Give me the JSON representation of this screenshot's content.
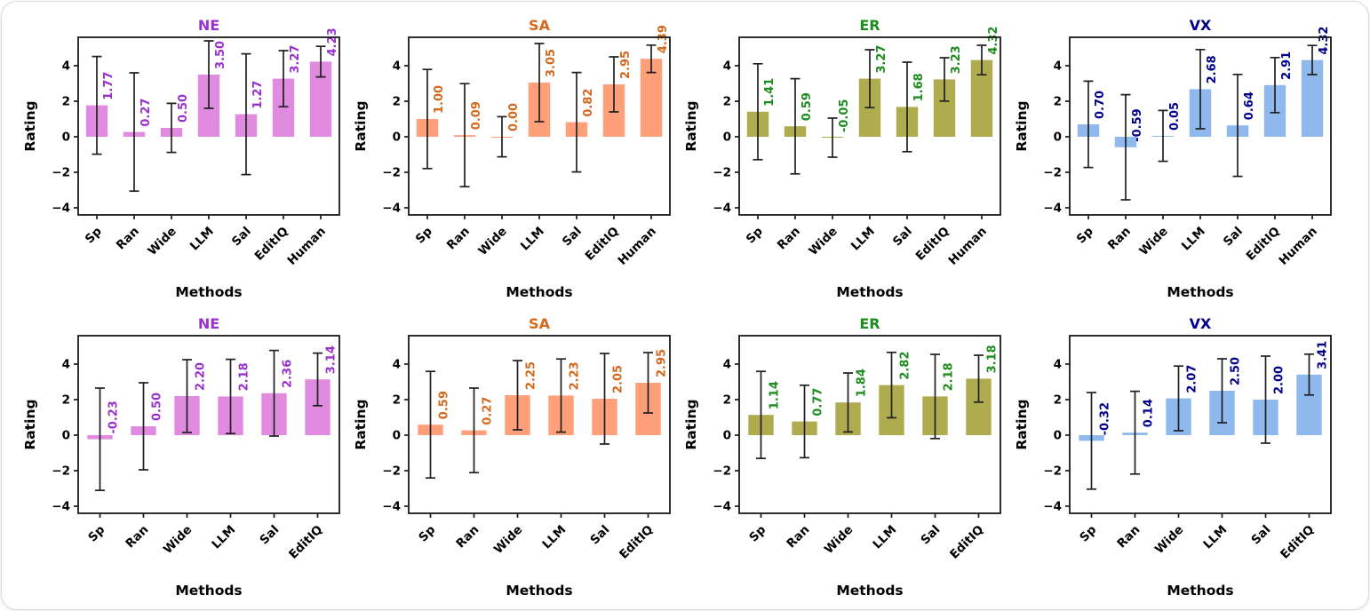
{
  "figure": {
    "ylabel": "Rating",
    "xlabel": "Methods",
    "yticks": [
      -4,
      -2,
      0,
      2,
      4
    ],
    "ylim": [
      -4.4,
      5.6
    ],
    "value_label_offset": 0.3,
    "axis_color": "#1a1a1a",
    "errorbar_color": "#1f1f1f",
    "tick_text_color": "#000000",
    "background_color": "#ffffff"
  },
  "chart_data": [
    {
      "id": "ne-top",
      "type": "bar",
      "title": "NE",
      "title_color": "#9932CC",
      "bar_color": "#E08BE0",
      "label_color": "#9932CC",
      "xlabel": "Methods",
      "ylabel": "Rating",
      "ylim": [
        -4.4,
        5.6
      ],
      "yticks": [
        -4,
        -2,
        0,
        2,
        4
      ],
      "categories": [
        "Sp",
        "Ran",
        "Wide",
        "LLM",
        "Sal",
        "EditIQ",
        "Human"
      ],
      "values": [
        1.77,
        0.27,
        0.5,
        3.5,
        1.27,
        3.27,
        4.23
      ],
      "errors": [
        2.75,
        3.33,
        1.38,
        1.9,
        3.4,
        1.58,
        0.86
      ]
    },
    {
      "id": "sa-top",
      "type": "bar",
      "title": "SA",
      "title_color": "#D2691E",
      "bar_color": "#FFA07A",
      "label_color": "#D2691E",
      "xlabel": "Methods",
      "ylabel": "Rating",
      "ylim": [
        -4.4,
        5.6
      ],
      "yticks": [
        -4,
        -2,
        0,
        2,
        4
      ],
      "categories": [
        "Sp",
        "Ran",
        "Wide",
        "LLM",
        "Sal",
        "EditIQ",
        "Human"
      ],
      "values": [
        1.0,
        0.09,
        0.0,
        3.05,
        0.82,
        2.95,
        4.39
      ],
      "errors": [
        2.79,
        2.9,
        1.13,
        2.2,
        2.8,
        1.55,
        0.77
      ]
    },
    {
      "id": "er-top",
      "type": "bar",
      "title": "ER",
      "title_color": "#1E8C1E",
      "bar_color": "#AFAC50",
      "label_color": "#1E8C1E",
      "xlabel": "Methods",
      "ylabel": "Rating",
      "ylim": [
        -4.4,
        5.6
      ],
      "yticks": [
        -4,
        -2,
        0,
        2,
        4
      ],
      "categories": [
        "Sp",
        "Ran",
        "Wide",
        "LLM",
        "Sal",
        "EditIQ",
        "Human"
      ],
      "values": [
        1.41,
        0.59,
        -0.05,
        3.27,
        1.68,
        3.23,
        4.32
      ],
      "errors": [
        2.7,
        2.68,
        1.1,
        1.63,
        2.52,
        1.22,
        0.83
      ]
    },
    {
      "id": "vx-top",
      "type": "bar",
      "title": "VX",
      "title_color": "#00008B",
      "bar_color": "#8FB8ED",
      "label_color": "#00008B",
      "xlabel": "Methods",
      "ylabel": "Rating",
      "ylim": [
        -4.4,
        5.6
      ],
      "yticks": [
        -4,
        -2,
        0,
        2,
        4
      ],
      "categories": [
        "Sp",
        "Ran",
        "Wide",
        "LLM",
        "Sal",
        "EditIQ",
        "Human"
      ],
      "values": [
        0.7,
        -0.59,
        0.05,
        2.68,
        0.64,
        2.91,
        4.32
      ],
      "errors": [
        2.43,
        2.96,
        1.43,
        2.23,
        2.87,
        1.55,
        0.82
      ]
    },
    {
      "id": "ne-bottom",
      "type": "bar",
      "title": "NE",
      "title_color": "#9932CC",
      "bar_color": "#E08BE0",
      "label_color": "#9932CC",
      "xlabel": "Methods",
      "ylabel": "Rating",
      "ylim": [
        -4.4,
        5.6
      ],
      "yticks": [
        -4,
        -2,
        0,
        2,
        4
      ],
      "categories": [
        "Sp",
        "Ran",
        "Wide",
        "LLM",
        "Sal",
        "EditIQ"
      ],
      "values": [
        -0.23,
        0.5,
        2.2,
        2.18,
        2.36,
        3.14
      ],
      "errors": [
        2.88,
        2.45,
        2.05,
        2.09,
        2.41,
        1.48
      ]
    },
    {
      "id": "sa-bottom",
      "type": "bar",
      "title": "SA",
      "title_color": "#D2691E",
      "bar_color": "#FFA07A",
      "label_color": "#D2691E",
      "xlabel": "Methods",
      "ylabel": "Rating",
      "ylim": [
        -4.4,
        5.6
      ],
      "yticks": [
        -4,
        -2,
        0,
        2,
        4
      ],
      "categories": [
        "Sp",
        "Ran",
        "Wide",
        "LLM",
        "Sal",
        "EditIQ"
      ],
      "values": [
        0.59,
        0.27,
        2.25,
        2.23,
        2.05,
        2.95
      ],
      "errors": [
        3.0,
        2.38,
        1.95,
        2.06,
        2.55,
        1.7
      ]
    },
    {
      "id": "er-bottom",
      "type": "bar",
      "title": "ER",
      "title_color": "#1E8C1E",
      "bar_color": "#AFAC50",
      "label_color": "#1E8C1E",
      "xlabel": "Methods",
      "ylabel": "Rating",
      "ylim": [
        -4.4,
        5.6
      ],
      "yticks": [
        -4,
        -2,
        0,
        2,
        4
      ],
      "categories": [
        "Sp",
        "Ran",
        "Wide",
        "LLM",
        "Sal",
        "EditIQ"
      ],
      "values": [
        1.14,
        0.77,
        1.84,
        2.82,
        2.18,
        3.18
      ],
      "errors": [
        2.45,
        2.04,
        1.66,
        1.84,
        2.37,
        1.32
      ]
    },
    {
      "id": "vx-bottom",
      "type": "bar",
      "title": "VX",
      "title_color": "#00008B",
      "bar_color": "#8FB8ED",
      "label_color": "#00008B",
      "xlabel": "Methods",
      "ylabel": "Rating",
      "ylim": [
        -4.4,
        5.6
      ],
      "yticks": [
        -4,
        -2,
        0,
        2,
        4
      ],
      "categories": [
        "Sp",
        "Ran",
        "Wide",
        "LLM",
        "Sal",
        "EditIQ"
      ],
      "values": [
        -0.32,
        0.14,
        2.07,
        2.5,
        2.0,
        3.41
      ],
      "errors": [
        2.72,
        2.33,
        1.82,
        1.8,
        2.45,
        1.15
      ]
    }
  ]
}
